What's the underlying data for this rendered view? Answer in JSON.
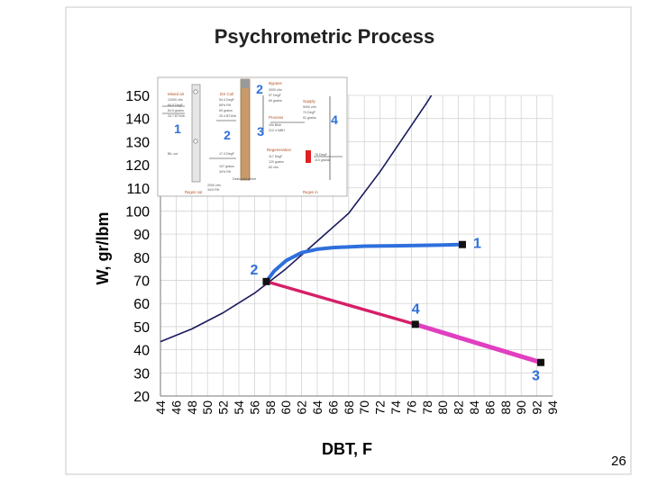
{
  "page_number": "26",
  "chart_data": {
    "type": "line",
    "title": "Psychrometric Process",
    "xlabel": "DBT, F",
    "ylabel": "W, gr/lbm",
    "xlim": [
      44,
      94
    ],
    "ylim": [
      20,
      150
    ],
    "x_ticks": [
      "44",
      "46",
      "48",
      "50",
      "52",
      "54",
      "56",
      "58",
      "60",
      "62",
      "64",
      "66",
      "68",
      "70",
      "72",
      "74",
      "76",
      "78",
      "80",
      "82",
      "84",
      "86",
      "88",
      "90",
      "92",
      "94"
    ],
    "y_ticks": [
      "20",
      "30",
      "40",
      "50",
      "60",
      "70",
      "80",
      "90",
      "100",
      "110",
      "120",
      "130",
      "140",
      "150"
    ],
    "grid": true,
    "series": [
      {
        "name": "",
        "color": "#1a1a5e",
        "points": [
          [
            44,
            43.5
          ],
          [
            48,
            49
          ],
          [
            52,
            56
          ],
          [
            56,
            64.5
          ],
          [
            60,
            75
          ],
          [
            64,
            87
          ],
          [
            68,
            99
          ],
          [
            72,
            117
          ],
          [
            76,
            137
          ],
          [
            78,
            147
          ],
          [
            80,
            158
          ]
        ]
      },
      {
        "name": "",
        "color": "#2e6fdc",
        "points": [
          [
            57.5,
            69.5
          ],
          [
            58.5,
            74
          ],
          [
            60,
            78.5
          ],
          [
            62,
            82
          ],
          [
            64,
            83.5
          ],
          [
            66,
            84.2
          ],
          [
            70,
            84.8
          ],
          [
            75,
            85
          ],
          [
            80,
            85.3
          ],
          [
            82.5,
            85.5
          ]
        ]
      },
      {
        "name": "",
        "color": "#d61f69",
        "points": [
          [
            57.5,
            69.5
          ],
          [
            76.5,
            51
          ]
        ]
      },
      {
        "name": "",
        "color": "#e040c0",
        "points": [
          [
            76.5,
            51
          ],
          [
            92.5,
            34.5
          ]
        ]
      }
    ],
    "state_points": [
      {
        "label": "1",
        "x": 82.5,
        "y": 85.5
      },
      {
        "label": "2",
        "x": 57.5,
        "y": 69.5
      },
      {
        "label": "4",
        "x": 76.5,
        "y": 51
      },
      {
        "label": "3",
        "x": 92.5,
        "y": 34.5
      }
    ],
    "inset": {
      "labels": {
        "n1": "1",
        "n2a": "2",
        "n2b": "2",
        "n3": "3",
        "n4": "4",
        "mixed_air": "Mixed air",
        "dx_coil": "DX Coil",
        "bypass": "Bypass",
        "supply": "Supply",
        "regeneration": "Regeneration",
        "process": "Process",
        "desiccant": "Desiccant wheel",
        "room_in": "Regen in",
        "room_out": "Regen out",
        "ma_1": "12000 cfm",
        "ma_2": "84.5 DegF",
        "ma_3": "84.5 grains",
        "ma_4": "33.7 BTU/lb",
        "dx_1": "54.4 DegF",
        "dx_2": "89% RH",
        "dx_3": "69 grains",
        "dx_4": "25.4 BTU/lb",
        "sup_1": "3000 cfm",
        "sup_2": "57 DegF",
        "sup_3": "69 grains",
        "out_1": "5000 cfm",
        "out_2": "74 DegF",
        "out_3": "51 grains",
        "reg_1": "117 DegF",
        "reg_2": "120 grains",
        "reg_3": "83 cfm",
        "heat_1": "76 DegF",
        "heat_2": "110 grains",
        "misc_1": "BIL out",
        "misc_2": "2000 cfm",
        "misc_3": "34% RH",
        "misc_4": "19k Btuh",
        "misc_5": "212.4 MBH",
        "r1": "17.4 DegF",
        "r2": "107 grains",
        "r3": "34% RH"
      }
    }
  }
}
